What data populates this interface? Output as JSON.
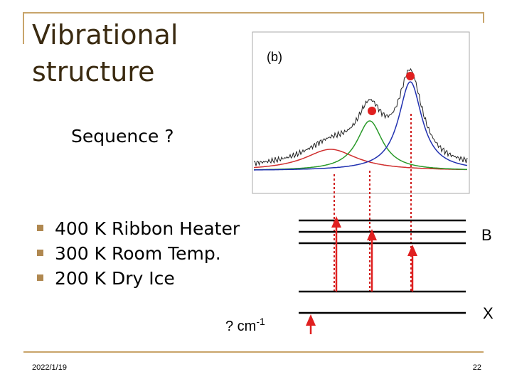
{
  "slide": {
    "title": [
      "Vibrational",
      "structure"
    ],
    "subtitle": "Sequence  ?",
    "figure_label": "(b)",
    "bullets": [
      "400 K Ribbon Heater",
      "300 K Room Temp.",
      "200 K Dry Ice"
    ],
    "state_upper": "B",
    "state_lower": "X",
    "energy_text": "? cm",
    "energy_sup": "-1",
    "date": "2022/1/19",
    "page": "22"
  }
}
